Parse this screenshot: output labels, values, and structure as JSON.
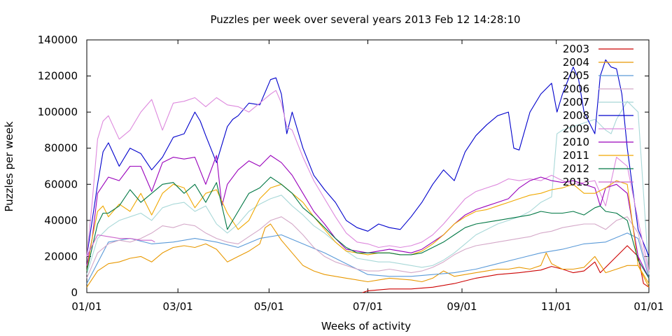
{
  "chart_data": {
    "type": "line",
    "title": "Puzzles per week over several years  2013 Feb 12  14:28:10",
    "xlabel": "Weeks of activity",
    "ylabel": "Puzzles per week",
    "ylim": [
      0,
      140000
    ],
    "xlim": [
      0,
      52
    ],
    "ytick_values": [
      0,
      20000,
      40000,
      60000,
      80000,
      100000,
      120000,
      140000
    ],
    "ytick_labels": [
      "0",
      "20000",
      "40000",
      "60000",
      "80000",
      "100000",
      "120000",
      "140000"
    ],
    "xtick_values": [
      0,
      8.43,
      16.86,
      26.0,
      34.71,
      43.43,
      52
    ],
    "xtick_labels": [
      "01/01",
      "03/01",
      "05/01",
      "07/01",
      "09/01",
      "11/01",
      "01/01"
    ],
    "grid": false,
    "legend_position": "top-right",
    "series": [
      {
        "name": "2003",
        "color": "#cc0000",
        "x": [
          25.5,
          26,
          28,
          30,
          32,
          34,
          36,
          38,
          40,
          42,
          43,
          44,
          45,
          46,
          47,
          47.5,
          48,
          49,
          50,
          51,
          51.5,
          52
        ],
        "values": [
          0,
          1000,
          2000,
          2000,
          3000,
          5000,
          8000,
          10000,
          11000,
          12500,
          14500,
          13000,
          11000,
          12000,
          17000,
          11000,
          14000,
          20000,
          26000,
          20000,
          5000,
          3000
        ]
      },
      {
        "name": "2004",
        "color": "#e89800",
        "x": [
          0,
          1,
          2,
          3,
          4,
          5,
          6,
          7,
          8,
          9,
          10,
          11,
          12,
          13,
          14,
          15,
          16,
          16.5,
          17,
          18,
          19,
          20,
          21,
          22,
          23,
          24,
          25,
          26,
          27,
          28,
          29,
          30,
          31,
          32,
          33,
          34,
          35,
          36,
          37,
          38,
          39,
          40,
          41,
          42,
          42.5,
          43,
          44,
          45,
          46,
          47,
          48,
          49,
          50,
          51,
          52
        ],
        "values": [
          3000,
          12000,
          16000,
          17000,
          19000,
          20000,
          17000,
          22000,
          25000,
          26000,
          25000,
          27000,
          24000,
          17000,
          20000,
          23000,
          27000,
          36000,
          38000,
          29000,
          22000,
          15000,
          12000,
          10000,
          9000,
          8000,
          7000,
          6000,
          7000,
          8000,
          7500,
          7000,
          6000,
          8000,
          12000,
          9000,
          10000,
          11000,
          12000,
          13000,
          13000,
          14000,
          13000,
          15000,
          22000,
          16000,
          13000,
          13000,
          14000,
          20000,
          11000,
          13000,
          15000,
          15000,
          3000
        ]
      },
      {
        "name": "2005",
        "color": "#5a9ad8",
        "x": [
          0,
          2,
          4,
          6,
          8,
          10,
          12,
          14,
          16,
          18,
          20,
          22,
          24,
          26,
          28,
          30,
          32,
          34,
          36,
          38,
          40,
          42,
          44,
          46,
          48,
          50,
          51,
          52
        ],
        "values": [
          5000,
          28000,
          30000,
          27000,
          28000,
          30000,
          28000,
          25000,
          30000,
          32000,
          27000,
          22000,
          16000,
          10000,
          9000,
          9000,
          10000,
          11000,
          13000,
          16000,
          19000,
          22000,
          24000,
          27000,
          28000,
          33000,
          30000,
          8000
        ]
      },
      {
        "name": "2006",
        "color": "#d4a8c8",
        "x": [
          0,
          1,
          2,
          3,
          4,
          5,
          6,
          7,
          8,
          9,
          10,
          11,
          12,
          13,
          14,
          15,
          16,
          17,
          18,
          19,
          20,
          21,
          22,
          23,
          24,
          25,
          26,
          27,
          28,
          29,
          30,
          31,
          32,
          33,
          34,
          35,
          36,
          37,
          38,
          39,
          40,
          41,
          42,
          43,
          44,
          45,
          46,
          47,
          48,
          49,
          50,
          51,
          52
        ],
        "values": [
          8000,
          22000,
          27000,
          29000,
          28000,
          30000,
          33000,
          37000,
          36000,
          38000,
          37000,
          33000,
          30000,
          28000,
          27000,
          31000,
          35000,
          40000,
          42000,
          38000,
          32000,
          25000,
          20000,
          17000,
          15000,
          13000,
          12000,
          12000,
          13000,
          12000,
          11000,
          12000,
          14000,
          17000,
          21000,
          24000,
          26000,
          27000,
          28000,
          29000,
          30000,
          31000,
          33000,
          34000,
          36000,
          37000,
          38000,
          38000,
          35000,
          40000,
          42000,
          33000,
          10000
        ]
      },
      {
        "name": "2007",
        "color": "#a8d8d8",
        "x": [
          0,
          1,
          2,
          3,
          4,
          5,
          6,
          7,
          8,
          9,
          10,
          11,
          12,
          13,
          14,
          15,
          16,
          17,
          18,
          19,
          20,
          21,
          22,
          23,
          24,
          25,
          26,
          27,
          28,
          29,
          30,
          31,
          32,
          33,
          34,
          35,
          36,
          37,
          38,
          39,
          40,
          41,
          42,
          43,
          43.5,
          44,
          45,
          46,
          47,
          48,
          48.5,
          49,
          50,
          51,
          52
        ],
        "values": [
          10000,
          30000,
          36000,
          40000,
          42000,
          44000,
          40000,
          47000,
          49000,
          50000,
          45000,
          48000,
          38000,
          33000,
          38000,
          45000,
          49000,
          52000,
          54000,
          48000,
          43000,
          37000,
          33000,
          28000,
          23000,
          19000,
          18000,
          17000,
          17000,
          16000,
          15000,
          14000,
          15000,
          18000,
          22000,
          27000,
          32000,
          35000,
          38000,
          40000,
          42000,
          45000,
          50000,
          53000,
          88000,
          90000,
          92000,
          94000,
          96000,
          90000,
          88000,
          96000,
          106000,
          100000,
          10000
        ]
      },
      {
        "name": "2008",
        "color": "#0000cc",
        "x": [
          0,
          0.5,
          1,
          1.5,
          2,
          3,
          4,
          5,
          6,
          7,
          8,
          9,
          10,
          10.5,
          11,
          12,
          13,
          13.5,
          14,
          15,
          16,
          17,
          17.5,
          18,
          18.5,
          19,
          20,
          21,
          22,
          23,
          24,
          25,
          26,
          27,
          28,
          29,
          30,
          31,
          32,
          33,
          34,
          35,
          36,
          37,
          38,
          39,
          39.5,
          40,
          41,
          42,
          43,
          43.5,
          44,
          45,
          45.5,
          46,
          47,
          47.5,
          48,
          48.5,
          49,
          49.5,
          50,
          51,
          52
        ],
        "values": [
          20000,
          40000,
          60000,
          78000,
          83000,
          70000,
          80000,
          77000,
          68000,
          75000,
          86000,
          88000,
          100000,
          95000,
          87000,
          72000,
          92000,
          96000,
          98000,
          105000,
          104000,
          118000,
          119000,
          110000,
          88000,
          100000,
          80000,
          65000,
          57000,
          50000,
          40000,
          36000,
          34000,
          38000,
          36000,
          35000,
          42000,
          50000,
          60000,
          68000,
          62000,
          78000,
          87000,
          93000,
          98000,
          100000,
          80000,
          79000,
          100000,
          110000,
          116000,
          100000,
          110000,
          125000,
          118000,
          100000,
          88000,
          120000,
          129000,
          125000,
          124000,
          110000,
          80000,
          35000,
          20000
        ]
      },
      {
        "name": "2009",
        "color": "#dd88dd",
        "x": [
          0,
          0.5,
          1,
          1.5,
          2,
          3,
          4,
          5,
          6,
          7,
          8,
          9,
          10,
          11,
          12,
          13,
          14,
          15,
          16,
          17,
          17.5,
          18,
          18.5,
          19,
          20,
          21,
          22,
          23,
          24,
          25,
          26,
          27,
          28,
          29,
          30,
          31,
          32,
          33,
          34,
          35,
          36,
          37,
          38,
          39,
          40,
          41,
          42,
          43,
          44,
          45,
          46,
          47,
          48,
          49,
          50,
          51,
          52
        ],
        "values": [
          20000,
          50000,
          85000,
          95000,
          98000,
          85000,
          90000,
          100000,
          107000,
          90000,
          105000,
          106000,
          108000,
          103000,
          108000,
          104000,
          103000,
          100000,
          105000,
          110000,
          112000,
          105000,
          92000,
          90000,
          75000,
          62000,
          52000,
          42000,
          33000,
          28000,
          27000,
          25000,
          26000,
          25000,
          26000,
          28000,
          32000,
          38000,
          45000,
          52000,
          56000,
          58000,
          60000,
          63000,
          62000,
          63000,
          62000,
          65000,
          62000,
          60000,
          61000,
          62000,
          48000,
          75000,
          70000,
          40000,
          12000
        ]
      },
      {
        "name": "2010",
        "color": "#9900bb",
        "x": [
          0,
          0.5,
          1,
          2,
          3,
          4,
          5,
          6,
          7,
          8,
          9,
          10,
          11,
          12,
          12.5,
          13,
          14,
          15,
          16,
          17,
          18,
          19,
          20,
          21,
          22,
          23,
          24,
          25,
          26,
          27,
          28,
          29,
          30,
          31,
          32,
          33,
          34,
          35,
          36,
          37,
          38,
          39,
          40,
          41,
          42,
          43,
          44,
          45,
          46,
          47,
          47.5,
          48,
          49,
          50,
          51,
          52
        ],
        "values": [
          15000,
          30000,
          55000,
          64000,
          62000,
          70000,
          70000,
          56000,
          72000,
          75000,
          74000,
          75000,
          60000,
          76000,
          48000,
          60000,
          68000,
          73000,
          70000,
          76000,
          72000,
          65000,
          55000,
          45000,
          38000,
          30000,
          24000,
          23000,
          22000,
          23000,
          24000,
          23000,
          22000,
          24000,
          28000,
          32000,
          38000,
          43000,
          46000,
          48000,
          50000,
          52000,
          58000,
          62000,
          64000,
          62000,
          61000,
          62000,
          60000,
          58000,
          48000,
          58000,
          60000,
          55000,
          20000,
          8000
        ]
      },
      {
        "name": "2011",
        "color": "#f0a800",
        "x": [
          0,
          0.5,
          1,
          1.5,
          2,
          3,
          4,
          5,
          6,
          7,
          8,
          9,
          10,
          11,
          12,
          13,
          14,
          15,
          16,
          17,
          18,
          19,
          20,
          21,
          22,
          23,
          24,
          25,
          26,
          27,
          28,
          29,
          30,
          31,
          32,
          33,
          34,
          35,
          36,
          37,
          38,
          39,
          40,
          41,
          42,
          43,
          44,
          45,
          46,
          47,
          48,
          49,
          50,
          51,
          52
        ],
        "values": [
          12000,
          30000,
          45000,
          48000,
          42000,
          49000,
          45000,
          55000,
          43000,
          55000,
          60000,
          58000,
          47000,
          55000,
          57000,
          44000,
          35000,
          40000,
          52000,
          58000,
          60000,
          55000,
          50000,
          42000,
          35000,
          28000,
          23000,
          22000,
          21000,
          22000,
          22000,
          21000,
          21000,
          23000,
          27000,
          32000,
          38000,
          42000,
          45000,
          46000,
          48000,
          50000,
          52000,
          54000,
          55000,
          57000,
          58000,
          60000,
          55000,
          55000,
          58000,
          62000,
          60000,
          15000,
          5000
        ]
      },
      {
        "name": "2012",
        "color": "#007744",
        "x": [
          0,
          0.5,
          1,
          1.5,
          2,
          3,
          4,
          5,
          6,
          7,
          8,
          9,
          10,
          11,
          12,
          13,
          14,
          15,
          16,
          17,
          18,
          19,
          20,
          21,
          22,
          23,
          24,
          25,
          26,
          27,
          28,
          29,
          30,
          31,
          32,
          33,
          34,
          35,
          36,
          37,
          38,
          39,
          40,
          41,
          42,
          43,
          44,
          45,
          46,
          47,
          47.5,
          48,
          49,
          50,
          51,
          52
        ],
        "values": [
          12000,
          25000,
          38000,
          44000,
          44000,
          48000,
          57000,
          50000,
          55000,
          60000,
          61000,
          55000,
          60000,
          50000,
          61000,
          35000,
          45000,
          55000,
          58000,
          64000,
          60000,
          55000,
          47000,
          42000,
          36000,
          30000,
          25000,
          22000,
          22000,
          22000,
          22000,
          21000,
          21000,
          22000,
          25000,
          28000,
          32000,
          36000,
          38000,
          39000,
          40000,
          41000,
          42000,
          43000,
          45000,
          44000,
          44000,
          45000,
          43000,
          47000,
          48000,
          45000,
          44000,
          40000,
          18000,
          8000
        ]
      },
      {
        "name": "2013",
        "color": "#cc66cc",
        "x": [
          0,
          1,
          2,
          3,
          4,
          5,
          6,
          6.3
        ],
        "values": [
          20000,
          32000,
          31000,
          30000,
          30000,
          29000,
          29000,
          28000
        ]
      }
    ]
  }
}
